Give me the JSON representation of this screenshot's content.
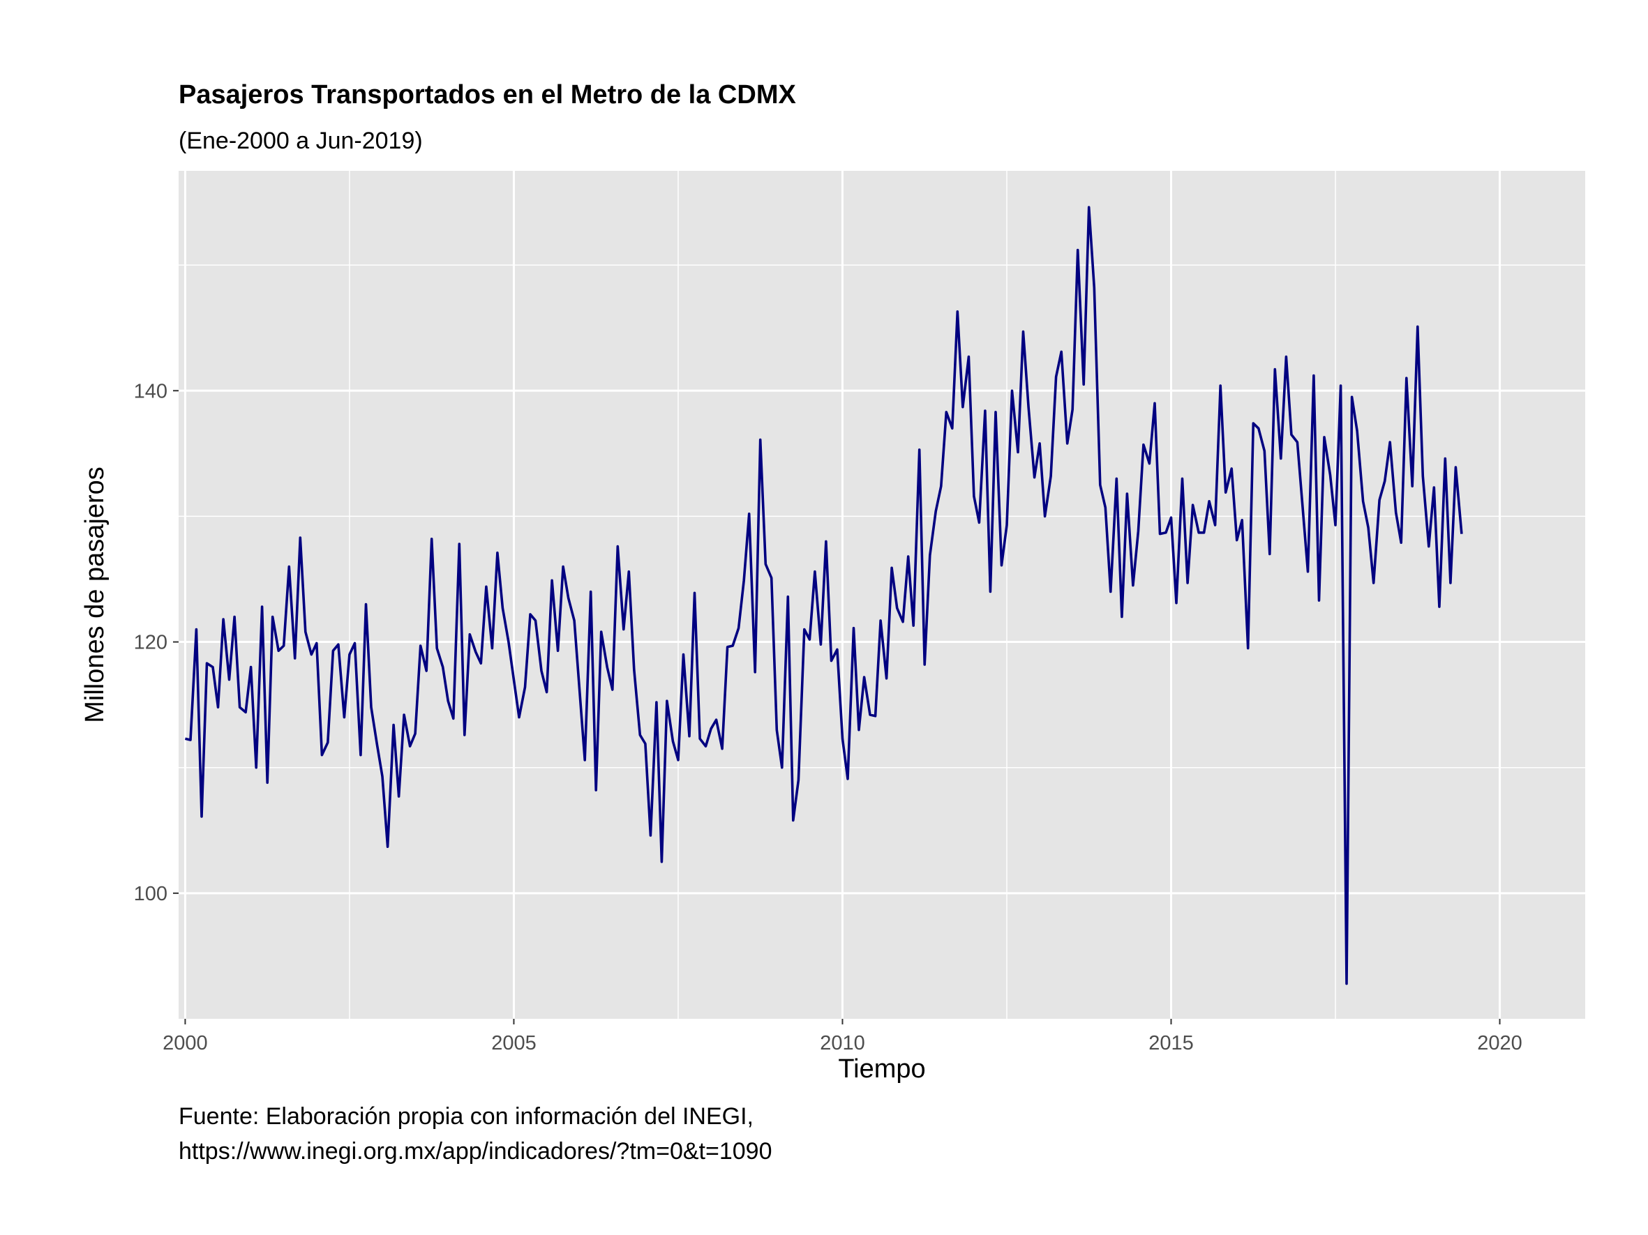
{
  "chart_data": {
    "type": "line",
    "title": "Pasajeros Transportados en el Metro de la CDMX",
    "subtitle": "(Ene-2000 a Jun-2019)",
    "xlabel": "Tiempo",
    "ylabel": "Millones de pasajeros",
    "caption_lines": [
      "Fuente: Elaboración propia con información del INEGI,",
      "https://www.inegi.org.mx/app/indicadores/?tm=0&t=1090"
    ],
    "x_ticks": [
      "2000",
      "2005",
      "2010",
      "2015",
      "2020"
    ],
    "y_ticks": [
      "100",
      "120",
      "140"
    ],
    "xlim": [
      1999.9,
      2021.3
    ],
    "ylim": [
      90,
      157.5
    ],
    "grid": true,
    "legend": "none",
    "line_color": "#000080",
    "panel_color": "#e5e5e5",
    "x": [
      2000.0,
      2000.08,
      2000.17,
      2000.25,
      2000.33,
      2000.42,
      2000.5,
      2000.58,
      2000.67,
      2000.75,
      2000.83,
      2000.92,
      2001.0,
      2001.08,
      2001.17,
      2001.25,
      2001.33,
      2001.42,
      2001.5,
      2001.58,
      2001.67,
      2001.75,
      2001.83,
      2001.92,
      2002.0,
      2002.08,
      2002.17,
      2002.25,
      2002.33,
      2002.42,
      2002.5,
      2002.58,
      2002.67,
      2002.75,
      2002.83,
      2002.92,
      2003.0,
      2003.08,
      2003.17,
      2003.25,
      2003.33,
      2003.42,
      2003.5,
      2003.58,
      2003.67,
      2003.75,
      2003.83,
      2003.92,
      2004.0,
      2004.08,
      2004.17,
      2004.25,
      2004.33,
      2004.42,
      2004.5,
      2004.58,
      2004.67,
      2004.75,
      2004.83,
      2004.92,
      2005.0,
      2005.08,
      2005.17,
      2005.25,
      2005.33,
      2005.42,
      2005.5,
      2005.58,
      2005.67,
      2005.75,
      2005.83,
      2005.92,
      2006.0,
      2006.08,
      2006.17,
      2006.25,
      2006.33,
      2006.42,
      2006.5,
      2006.58,
      2006.67,
      2006.75,
      2006.83,
      2006.92,
      2007.0,
      2007.08,
      2007.17,
      2007.25,
      2007.33,
      2007.42,
      2007.5,
      2007.58,
      2007.67,
      2007.75,
      2007.83,
      2007.92,
      2008.0,
      2008.08,
      2008.17,
      2008.25,
      2008.33,
      2008.42,
      2008.5,
      2008.58,
      2008.67,
      2008.75,
      2008.83,
      2008.92,
      2009.0,
      2009.08,
      2009.17,
      2009.25,
      2009.33,
      2009.42,
      2009.5,
      2009.58,
      2009.67,
      2009.75,
      2009.83,
      2009.92,
      2010.0,
      2010.08,
      2010.17,
      2010.25,
      2010.33,
      2010.42,
      2010.5,
      2010.58,
      2010.67,
      2010.75,
      2010.83,
      2010.92,
      2011.0,
      2011.08,
      2011.17,
      2011.25,
      2011.33,
      2011.42,
      2011.5,
      2011.58,
      2011.67,
      2011.75,
      2011.83,
      2011.92,
      2012.0,
      2012.08,
      2012.17,
      2012.25,
      2012.33,
      2012.42,
      2012.5,
      2012.58,
      2012.67,
      2012.75,
      2012.83,
      2012.92,
      2013.0,
      2013.08,
      2013.17,
      2013.25,
      2013.33,
      2013.42,
      2013.5,
      2013.58,
      2013.67,
      2013.75,
      2013.83,
      2013.92,
      2014.0,
      2014.08,
      2014.17,
      2014.25,
      2014.33,
      2014.42,
      2014.5,
      2014.58,
      2014.67,
      2014.75,
      2014.83,
      2014.92,
      2015.0,
      2015.08,
      2015.17,
      2015.25,
      2015.33,
      2015.42,
      2015.5,
      2015.58,
      2015.67,
      2015.75,
      2015.83,
      2015.92,
      2016.0,
      2016.08,
      2016.17,
      2016.25,
      2016.33,
      2016.42,
      2016.5,
      2016.58,
      2016.67,
      2016.75,
      2016.83,
      2016.92,
      2017.0,
      2017.08,
      2017.17,
      2017.25,
      2017.33,
      2017.42,
      2017.5,
      2017.58,
      2017.67,
      2017.75,
      2017.83,
      2017.92,
      2018.0,
      2018.08,
      2018.17,
      2018.25,
      2018.33,
      2018.42,
      2018.5,
      2018.58,
      2018.67,
      2018.75,
      2018.83,
      2018.92,
      2019.0,
      2019.08,
      2019.17,
      2019.25,
      2019.33,
      2019.42
    ],
    "values": [
      112.3,
      112.2,
      121.0,
      106.1,
      118.3,
      118.0,
      114.8,
      121.8,
      117.0,
      122.0,
      114.8,
      114.4,
      118.0,
      110.0,
      122.8,
      108.8,
      122.0,
      119.3,
      119.7,
      126.0,
      118.7,
      128.3,
      120.8,
      119.0,
      119.9,
      111.0,
      112.0,
      119.3,
      119.8,
      114.0,
      119.0,
      119.9,
      111.0,
      123.0,
      114.8,
      111.8,
      109.3,
      103.7,
      113.4,
      107.7,
      114.2,
      111.7,
      112.7,
      119.7,
      117.7,
      128.2,
      119.5,
      118.0,
      115.3,
      113.9,
      127.8,
      112.6,
      120.6,
      119.2,
      118.3,
      124.4,
      119.5,
      127.1,
      122.7,
      120.0,
      117.0,
      114.0,
      116.4,
      122.2,
      121.7,
      117.7,
      116.0,
      124.9,
      119.3,
      126.0,
      123.5,
      121.7,
      116.1,
      110.6,
      124.0,
      108.2,
      120.8,
      118.0,
      116.2,
      127.6,
      121.0,
      125.6,
      117.8,
      112.6,
      111.9,
      104.6,
      115.2,
      102.5,
      115.3,
      112.1,
      110.6,
      119.0,
      112.5,
      123.9,
      112.3,
      111.7,
      113.1,
      113.8,
      111.5,
      119.6,
      119.7,
      121.1,
      124.9,
      130.2,
      117.6,
      136.1,
      126.2,
      125.1,
      113.0,
      110.0,
      123.6,
      105.8,
      109.0,
      121.0,
      120.2,
      125.6,
      119.8,
      128.0,
      118.5,
      119.4,
      112.3,
      109.1,
      121.1,
      113.0,
      117.2,
      114.2,
      114.1,
      121.7,
      117.1,
      125.9,
      122.7,
      121.6,
      126.8,
      121.3,
      135.3,
      118.2,
      126.9,
      130.4,
      132.4,
      138.3,
      137.0,
      146.3,
      138.7,
      142.7,
      131.6,
      129.5,
      138.4,
      124.0,
      138.3,
      126.1,
      129.3,
      140.0,
      135.1,
      144.7,
      138.7,
      133.1,
      135.8,
      130.0,
      133.2,
      141.1,
      143.1,
      135.8,
      138.5,
      151.2,
      140.5,
      154.6,
      148.2,
      132.5,
      130.7,
      124.0,
      133.0,
      122.0,
      131.8,
      124.5,
      128.8,
      135.7,
      134.2,
      139.0,
      128.6,
      128.7,
      129.9,
      123.1,
      133.0,
      124.7,
      130.9,
      128.7,
      128.7,
      131.2,
      129.3,
      140.4,
      131.9,
      133.8,
      128.1,
      129.7,
      119.5,
      137.4,
      137.0,
      135.2,
      127.0,
      141.7,
      134.6,
      142.7,
      136.5,
      135.9,
      130.8,
      125.6,
      141.2,
      123.3,
      136.3,
      133.3,
      129.3,
      140.4,
      92.8,
      139.5,
      136.8,
      131.2,
      129.1,
      124.7,
      131.3,
      132.8,
      135.9,
      130.3,
      127.9,
      141.0,
      132.4,
      145.1,
      133.2,
      127.6,
      132.3,
      122.8,
      134.6,
      124.7,
      133.9,
      128.6
    ]
  }
}
